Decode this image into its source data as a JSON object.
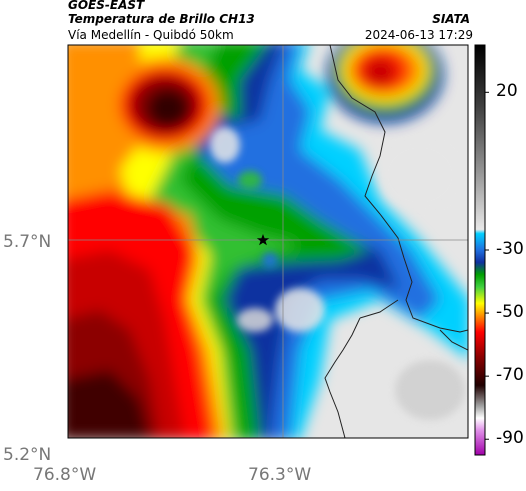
{
  "header": {
    "satellite": "GOES-EAST",
    "product": "Temperatura de Brillo CH13",
    "route": "Vía Medellín - Quibdó 50km",
    "org": "SIATA",
    "timestamp": "2024-06-13 17:29"
  },
  "axes": {
    "lat_ticks": [
      "5.7°N",
      "5.2°N"
    ],
    "lon_ticks": [
      "76.8°W",
      "76.3°W"
    ]
  },
  "colorbar": {
    "labels": [
      "20",
      "-30",
      "-50",
      "-70",
      "-90"
    ],
    "values": [
      20,
      -30,
      -50,
      -70,
      -90
    ],
    "min": -95,
    "max": 35
  },
  "marker": {
    "symbol": "star",
    "lat": 5.7,
    "lon": -76.35
  }
}
